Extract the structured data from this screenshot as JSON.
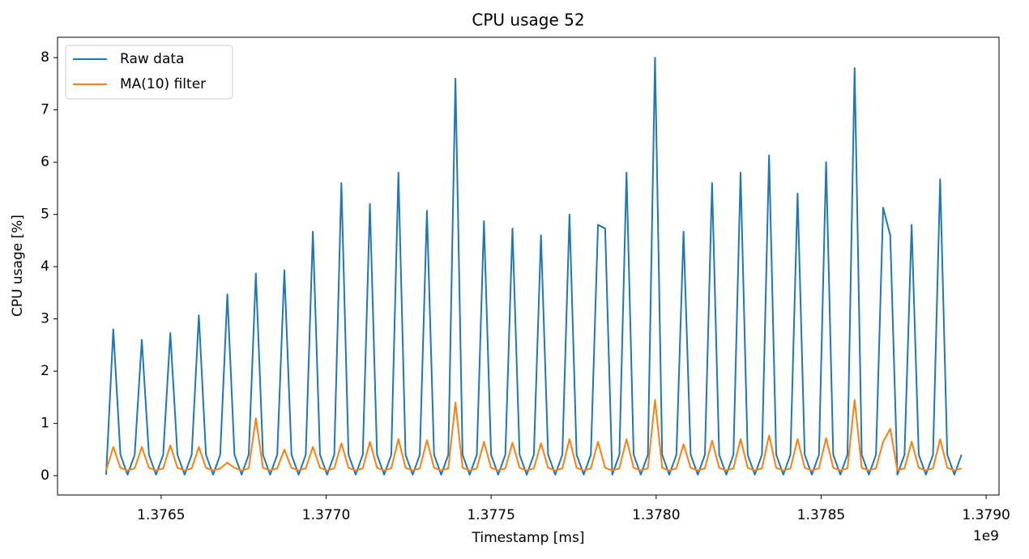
{
  "chart_data": {
    "type": "line",
    "title": "CPU usage 52",
    "x_label": "Timestamp [ms]",
    "y_label": "CPU usage [%]",
    "x_offset_label": "1e9",
    "xlim": [
      1376186000,
      1379039000
    ],
    "xticks": [
      {
        "value": 1376500000,
        "label": "1.3765"
      },
      {
        "value": 1377000000,
        "label": "1.3770"
      },
      {
        "value": 1377500000,
        "label": "1.3775"
      },
      {
        "value": 1378000000,
        "label": "1.3780"
      },
      {
        "value": 1378500000,
        "label": "1.3785"
      },
      {
        "value": 1379000000,
        "label": "1.3790"
      }
    ],
    "ylim": [
      -0.37,
      8.39
    ],
    "yticks": [
      0,
      1,
      2,
      3,
      4,
      5,
      6,
      7,
      8
    ],
    "legend": "upper left",
    "x": [
      1376333400,
      1376355000,
      1376376600,
      1376398200,
      1376419800,
      1376441400,
      1376463000,
      1376484600,
      1376506200,
      1376527800,
      1376549400,
      1376571000,
      1376592600,
      1376614200,
      1376635800,
      1376657400,
      1376679000,
      1376700600,
      1376722200,
      1376743800,
      1376765400,
      1376787000,
      1376808600,
      1376830200,
      1376851800,
      1376873400,
      1376895000,
      1376916600,
      1376938200,
      1376959800,
      1376981400,
      1377003000,
      1377024600,
      1377046200,
      1377067800,
      1377089400,
      1377111000,
      1377132600,
      1377154200,
      1377175800,
      1377197400,
      1377219000,
      1377240600,
      1377262200,
      1377283800,
      1377305400,
      1377327000,
      1377348600,
      1377370200,
      1377391800,
      1377413400,
      1377435000,
      1377456600,
      1377478200,
      1377499800,
      1377521400,
      1377543000,
      1377564600,
      1377586200,
      1377607800,
      1377629400,
      1377651000,
      1377672600,
      1377694200,
      1377715800,
      1377737400,
      1377759000,
      1377780600,
      1377802200,
      1377823800,
      1377845400,
      1377867000,
      1377888600,
      1377910200,
      1377931800,
      1377953400,
      1377975000,
      1377996600,
      1378018200,
      1378039800,
      1378061400,
      1378083000,
      1378104600,
      1378126200,
      1378147800,
      1378169400,
      1378191000,
      1378212600,
      1378234200,
      1378255800,
      1378277400,
      1378299000,
      1378320600,
      1378342200,
      1378363800,
      1378385400,
      1378407000,
      1378428600,
      1378450200,
      1378471800,
      1378493400,
      1378515000,
      1378536600,
      1378558200,
      1378579800,
      1378601400,
      1378623000,
      1378644600,
      1378666200,
      1378687800,
      1378709400,
      1378731000,
      1378752600,
      1378774200,
      1378795800,
      1378817400,
      1378839000,
      1378860600,
      1378882200,
      1378903800,
      1378925400
    ],
    "series": [
      {
        "name": "Raw data",
        "color": "#1f77b4",
        "values": [
          0.02,
          2.8,
          0.4,
          0.02,
          0.4,
          2.6,
          0.4,
          0.02,
          0.4,
          2.73,
          0.4,
          0.02,
          0.4,
          3.07,
          0.4,
          0.02,
          0.4,
          3.47,
          0.4,
          0.02,
          0.4,
          3.87,
          0.4,
          0.02,
          0.4,
          3.93,
          0.4,
          0.02,
          0.4,
          4.67,
          0.4,
          0.02,
          0.4,
          5.6,
          0.4,
          0.02,
          0.4,
          5.2,
          0.4,
          0.02,
          0.4,
          5.8,
          0.4,
          0.02,
          0.4,
          5.07,
          0.4,
          0.02,
          0.4,
          7.6,
          0.4,
          0.02,
          0.4,
          4.87,
          0.4,
          0.02,
          0.4,
          4.73,
          0.4,
          0.02,
          0.4,
          4.6,
          0.4,
          0.02,
          0.4,
          5.0,
          0.4,
          0.02,
          0.4,
          4.8,
          4.73,
          0.02,
          0.4,
          5.8,
          0.4,
          0.02,
          0.4,
          8.0,
          0.4,
          0.02,
          0.4,
          4.67,
          0.4,
          0.02,
          0.4,
          5.6,
          0.4,
          0.02,
          0.4,
          5.8,
          0.4,
          0.02,
          0.4,
          6.13,
          0.4,
          0.02,
          0.4,
          5.4,
          0.4,
          0.02,
          0.4,
          6.0,
          0.4,
          0.02,
          0.4,
          7.8,
          0.4,
          0.02,
          0.4,
          5.13,
          4.6,
          0.02,
          0.4,
          4.8,
          0.4,
          0.02,
          0.4,
          5.67,
          0.4,
          0.02,
          0.4
        ]
      },
      {
        "name": "MA(10) filter",
        "color": "#ff7f0e",
        "values": [
          0.1,
          0.55,
          0.15,
          0.1,
          0.14,
          0.55,
          0.15,
          0.1,
          0.14,
          0.58,
          0.15,
          0.1,
          0.14,
          0.55,
          0.15,
          0.1,
          0.14,
          0.25,
          0.15,
          0.1,
          0.14,
          1.1,
          0.15,
          0.1,
          0.14,
          0.5,
          0.15,
          0.1,
          0.14,
          0.55,
          0.15,
          0.1,
          0.14,
          0.62,
          0.15,
          0.1,
          0.14,
          0.65,
          0.15,
          0.1,
          0.14,
          0.7,
          0.15,
          0.1,
          0.14,
          0.68,
          0.15,
          0.1,
          0.14,
          1.4,
          0.15,
          0.1,
          0.14,
          0.65,
          0.15,
          0.1,
          0.14,
          0.63,
          0.15,
          0.1,
          0.14,
          0.62,
          0.15,
          0.1,
          0.14,
          0.7,
          0.15,
          0.1,
          0.14,
          0.65,
          0.15,
          0.1,
          0.14,
          0.7,
          0.15,
          0.1,
          0.14,
          1.45,
          0.15,
          0.1,
          0.14,
          0.6,
          0.15,
          0.1,
          0.14,
          0.67,
          0.15,
          0.1,
          0.14,
          0.7,
          0.15,
          0.1,
          0.14,
          0.77,
          0.15,
          0.1,
          0.14,
          0.7,
          0.15,
          0.1,
          0.14,
          0.72,
          0.15,
          0.1,
          0.14,
          1.45,
          0.15,
          0.1,
          0.14,
          0.65,
          0.9,
          0.1,
          0.14,
          0.65,
          0.15,
          0.1,
          0.14,
          0.7,
          0.15,
          0.1,
          0.14
        ]
      }
    ]
  }
}
